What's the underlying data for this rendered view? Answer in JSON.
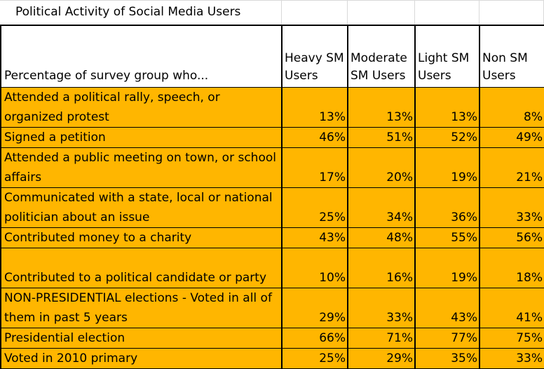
{
  "title": "Political Activity of Social Media Users",
  "chart_data": {
    "type": "table",
    "title": "Political Activity of Social Media Users",
    "row_header": "Percentage of survey group who...",
    "columns": [
      "Heavy SM Users",
      "Moderate SM Users",
      "Light SM Users",
      "Non SM Users"
    ],
    "rows": [
      {
        "label": "Attended a political rally, speech, or organized protest",
        "values": [
          "13%",
          "13%",
          "13%",
          "8%"
        ]
      },
      {
        "label": "Signed a petition",
        "values": [
          "46%",
          "51%",
          "52%",
          "49%"
        ]
      },
      {
        "label": "Attended a public meeting on town, or school affairs",
        "values": [
          "17%",
          "20%",
          "19%",
          "21%"
        ]
      },
      {
        "label": "Communicated with a state, local or national politician about an issue",
        "values": [
          "25%",
          "34%",
          "36%",
          "33%"
        ]
      },
      {
        "label": "Contributed money to a charity",
        "values": [
          "43%",
          "48%",
          "55%",
          "56%"
        ]
      },
      {
        "label": "Contributed to a political candidate or party",
        "values": [
          "10%",
          "16%",
          "19%",
          "18%"
        ]
      },
      {
        "label": "NON-PRESIDENTIAL elections - Voted in all of them in past 5 years",
        "values": [
          "29%",
          "33%",
          "43%",
          "41%"
        ]
      },
      {
        "label": "Presidential election",
        "values": [
          "66%",
          "71%",
          "77%",
          "75%"
        ]
      },
      {
        "label": "Voted in 2010 primary",
        "values": [
          "25%",
          "29%",
          "35%",
          "33%"
        ]
      }
    ],
    "colors": {
      "cell_fill": "#ffb600",
      "header_fill": "#ffffff",
      "border": "#000000"
    }
  }
}
